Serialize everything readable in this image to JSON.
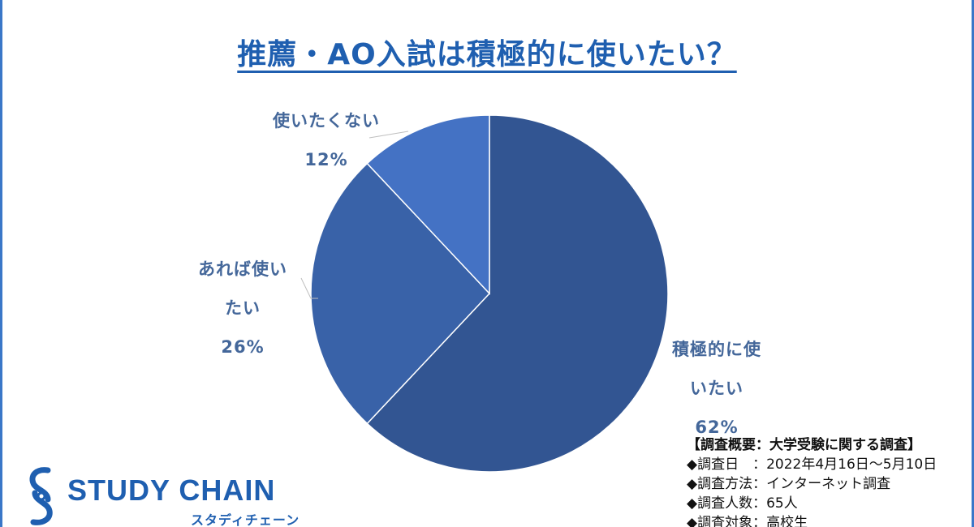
{
  "chart_data": {
    "type": "pie",
    "title": "推薦・AO入試は積極的に使いたい？",
    "slices": [
      {
        "label_lines": [
          "積極的に使",
          "いたい"
        ],
        "value": 62,
        "value_label": "62%",
        "color": "#325592"
      },
      {
        "label_lines": [
          "あれば使い",
          "たい"
        ],
        "value": 26,
        "value_label": "26%",
        "color": "#3962a8"
      },
      {
        "label_lines": [
          "使いたくない"
        ],
        "value": 12,
        "value_label": "12%",
        "color": "#4472c4"
      }
    ]
  },
  "survey": {
    "title": "【調査概要：大学受験に関する調査】",
    "lines": [
      "◆調査日　：2022年4月16日〜5月10日",
      "◆調査方法：インターネット調査",
      "◆調査人数：65人",
      "◆調査対象：高校生"
    ]
  },
  "logo": {
    "name": "STUDY CHAIN",
    "sub": "スタディチェーン"
  },
  "colors": {
    "accent": "#1f5fb0",
    "label": "#44679a"
  }
}
